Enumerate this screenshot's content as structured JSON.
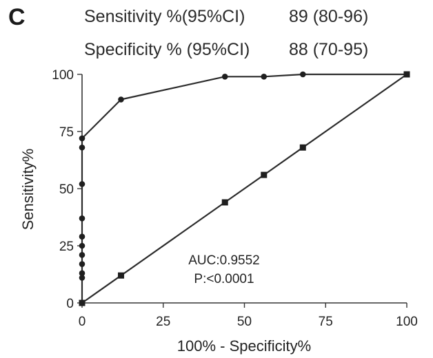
{
  "panel_label": "C",
  "stats": [
    {
      "label": "Sensitivity %(95%CI)",
      "value": "89 (80-96)"
    },
    {
      "label": "Specificity % (95%CI)",
      "value": "88 (70-95)"
    }
  ],
  "chart_data": {
    "type": "line",
    "xlabel": "100% - Specificity%",
    "ylabel": "Sensitivity%",
    "xlim": [
      0,
      100
    ],
    "ylim": [
      0,
      100
    ],
    "xticks": [
      "0",
      "25",
      "50",
      "75",
      "100"
    ],
    "yticks": [
      "0",
      "25",
      "50",
      "75",
      "100"
    ],
    "grid": false,
    "series": [
      {
        "marker": "circle",
        "points": [
          [
            0,
            0
          ],
          [
            0,
            11
          ],
          [
            0,
            13
          ],
          [
            0,
            17
          ],
          [
            0,
            21
          ],
          [
            0,
            25
          ],
          [
            0,
            29
          ],
          [
            0,
            37
          ],
          [
            0,
            52
          ],
          [
            0,
            68
          ],
          [
            0,
            72
          ],
          [
            12,
            89
          ],
          [
            44,
            99
          ],
          [
            56,
            99
          ],
          [
            68,
            100
          ],
          [
            100,
            100
          ]
        ]
      },
      {
        "marker": "square",
        "points": [
          [
            0,
            0
          ],
          [
            12,
            12
          ],
          [
            44,
            44
          ],
          [
            56,
            56
          ],
          [
            68,
            68
          ],
          [
            100,
            100
          ]
        ]
      }
    ],
    "annotations": [
      "AUC:0.9552",
      "P:<0.0001"
    ]
  }
}
